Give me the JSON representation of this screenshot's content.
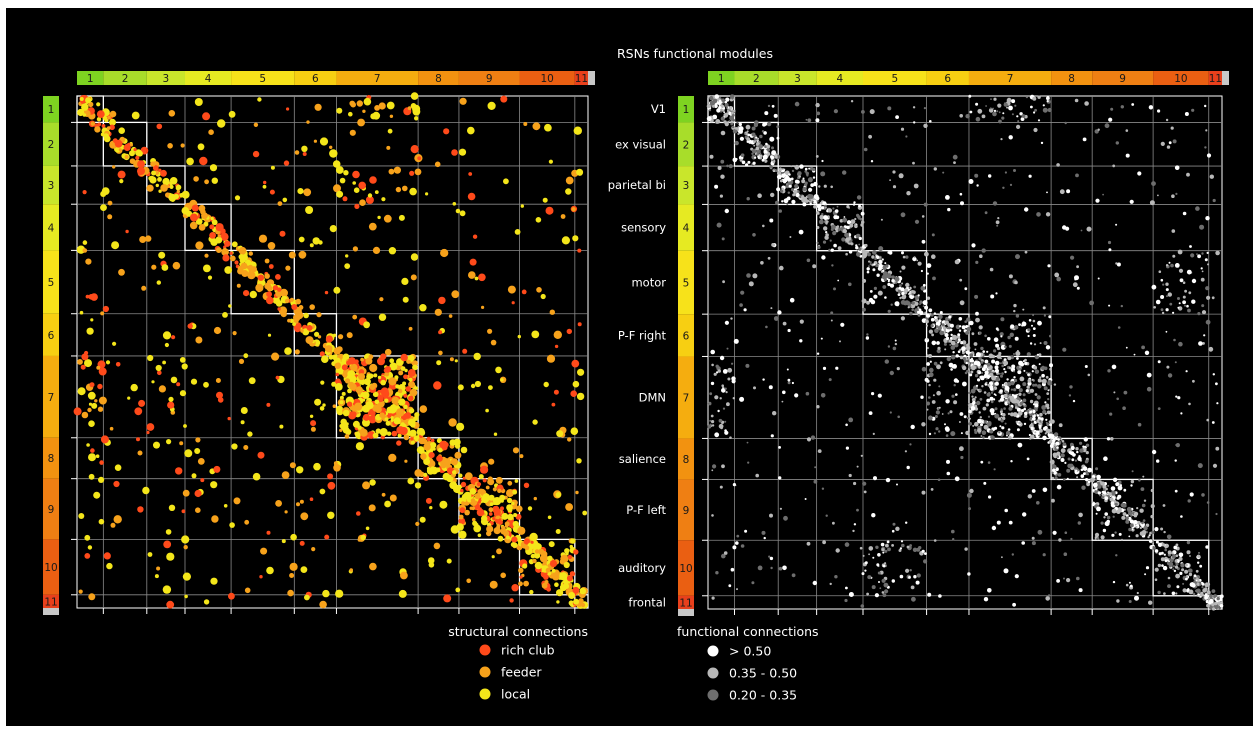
{
  "title": "RSNs  functional modules",
  "modules": [
    {
      "label": "1",
      "color": "#7ed321"
    },
    {
      "label": "2",
      "color": "#a8dd2a"
    },
    {
      "label": "3",
      "color": "#c9e62b"
    },
    {
      "label": "4",
      "color": "#e6ea22"
    },
    {
      "label": "5",
      "color": "#f7e21a"
    },
    {
      "label": "6",
      "color": "#f7cf12"
    },
    {
      "label": "7",
      "color": "#f5ad0f"
    },
    {
      "label": "8",
      "color": "#f29210"
    },
    {
      "label": "9",
      "color": "#ef7f13"
    },
    {
      "label": "10",
      "color": "#ea5f12"
    },
    {
      "label": "11",
      "color": "#e8401c"
    }
  ],
  "network_names": [
    "V1",
    "ex visual",
    "parietal bi",
    "sensory",
    "motor",
    "P-F right",
    "DMN",
    "salience",
    "P-F left",
    "auditory",
    "frontal"
  ],
  "legend_structural": {
    "title": "structural connections",
    "items": [
      {
        "label": "rich club",
        "color": "#ff4a1a"
      },
      {
        "label": "feeder",
        "color": "#f7a21b"
      },
      {
        "label": "local",
        "color": "#f4e61a"
      }
    ]
  },
  "legend_functional": {
    "title": "functional connections",
    "items": [
      {
        "label": "> 0.50",
        "color": "#ffffff"
      },
      {
        "label": "0.35 - 0.50",
        "color": "#b8b8b8"
      },
      {
        "label": "0.20 - 0.35",
        "color": "#6e6e6e"
      }
    ]
  },
  "chart_data": [
    {
      "type": "heatmap",
      "name": "structural connectivity matrix",
      "row_modules": [
        "1",
        "2",
        "3",
        "4",
        "5",
        "6",
        "7",
        "8",
        "9",
        "10",
        "11"
      ],
      "col_modules": [
        "1",
        "2",
        "3",
        "4",
        "5",
        "6",
        "7",
        "8",
        "9",
        "10",
        "11"
      ],
      "module_relative_sizes": [
        2.0,
        3.3,
        2.9,
        3.5,
        4.8,
        3.2,
        6.2,
        3.1,
        4.6,
        4.2,
        1.0
      ],
      "categories": [
        "rich club",
        "feeder",
        "local"
      ]
    },
    {
      "type": "heatmap",
      "name": "functional connectivity matrix",
      "row_modules": [
        "1",
        "2",
        "3",
        "4",
        "5",
        "6",
        "7",
        "8",
        "9",
        "10",
        "11"
      ],
      "col_modules": [
        "1",
        "2",
        "3",
        "4",
        "5",
        "6",
        "7",
        "8",
        "9",
        "10",
        "11"
      ],
      "row_labels": [
        "V1",
        "ex visual",
        "parietal bi",
        "sensory",
        "motor",
        "P-F right",
        "DMN",
        "salience",
        "P-F left",
        "auditory",
        "frontal"
      ],
      "module_relative_sizes": [
        2.0,
        3.3,
        2.9,
        3.5,
        4.8,
        3.2,
        6.2,
        3.1,
        4.6,
        4.2,
        1.0
      ],
      "categories": [
        "> 0.50",
        "0.35 - 0.50",
        "0.20 - 0.35"
      ]
    }
  ]
}
